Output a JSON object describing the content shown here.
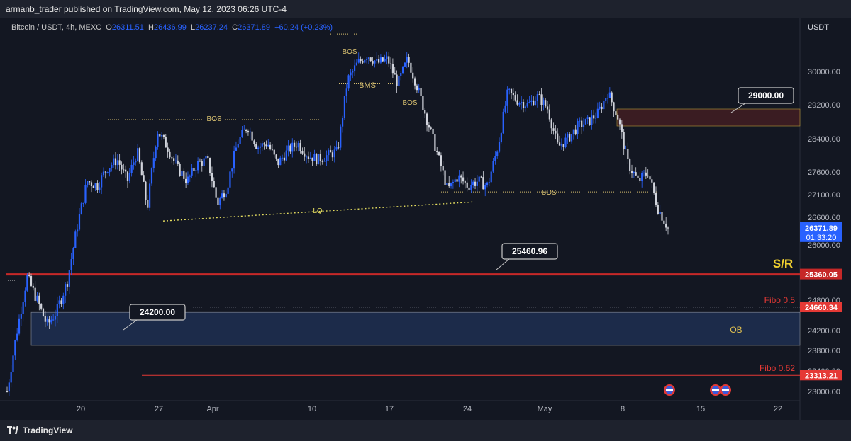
{
  "header": {
    "published": "armanb_trader published on TradingView.com, May 12, 2023 06:26 UTC-4"
  },
  "footer": {
    "brand": "TradingView"
  },
  "legend": {
    "symbol": "Bitcoin / USDT, 4h, MEXC",
    "o_label": "O",
    "o": "26311.51",
    "h_label": "H",
    "h": "26436.99",
    "l_label": "L",
    "l": "26237.24",
    "c_label": "C",
    "c": "26371.89",
    "change": "+60.24 (+0.23%)"
  },
  "currency": "USDT",
  "colors": {
    "up": "#2962ff",
    "down": "#d1d4dc",
    "sr": "#c62828",
    "fibo": "#e53935",
    "ob": "#1c2b4a",
    "supply": "#3a1c22",
    "label_gold": "#e0c050"
  },
  "chart_data": {
    "type": "candlestick",
    "ylim": [
      23000,
      31000
    ],
    "x_ticks": [
      "20",
      "27",
      "Apr",
      "10",
      "17",
      "24",
      "May",
      "8",
      "15",
      "22"
    ],
    "y_ticks": [
      "30000.00",
      "29200.00",
      "28400.00",
      "27600.00",
      "27100.00",
      "26600.00",
      "26000.00",
      "24800.00",
      "24200.00",
      "23800.00",
      "23400.00",
      "23000.00"
    ],
    "price_path": [
      [
        0,
        23000
      ],
      [
        1,
        24200
      ],
      [
        2,
        25300
      ],
      [
        3,
        24800
      ],
      [
        4,
        24300
      ],
      [
        5,
        24600
      ],
      [
        6,
        25200
      ],
      [
        7,
        26400
      ],
      [
        8,
        27400
      ],
      [
        9,
        27300
      ],
      [
        10,
        27700
      ],
      [
        11,
        27900
      ],
      [
        12,
        27400
      ],
      [
        13,
        28100
      ],
      [
        14,
        26800
      ],
      [
        15,
        28600
      ],
      [
        16,
        28200
      ],
      [
        17,
        27700
      ],
      [
        18,
        27400
      ],
      [
        19,
        27800
      ],
      [
        20,
        27900
      ],
      [
        21,
        26900
      ],
      [
        22,
        27300
      ],
      [
        23,
        28300
      ],
      [
        24,
        28700
      ],
      [
        25,
        28200
      ],
      [
        26,
        28300
      ],
      [
        27,
        27800
      ],
      [
        28,
        28100
      ],
      [
        29,
        28300
      ],
      [
        30,
        28000
      ],
      [
        31,
        27900
      ],
      [
        32,
        28000
      ],
      [
        33,
        28100
      ],
      [
        34,
        29800
      ],
      [
        35,
        30200
      ],
      [
        36,
        30400
      ],
      [
        37,
        30200
      ],
      [
        38,
        30300
      ],
      [
        39,
        29700
      ],
      [
        40,
        30300
      ],
      [
        41,
        29600
      ],
      [
        42,
        28800
      ],
      [
        43,
        28000
      ],
      [
        44,
        27200
      ],
      [
        45,
        27500
      ],
      [
        46,
        27300
      ],
      [
        47,
        27400
      ],
      [
        48,
        27300
      ],
      [
        49,
        28200
      ],
      [
        50,
        29500
      ],
      [
        51,
        29300
      ],
      [
        52,
        29200
      ],
      [
        53,
        29400
      ],
      [
        54,
        29100
      ],
      [
        55,
        28200
      ],
      [
        56,
        28400
      ],
      [
        57,
        28700
      ],
      [
        58,
        28800
      ],
      [
        59,
        29000
      ],
      [
        60,
        29500
      ],
      [
        61,
        28900
      ],
      [
        62,
        27800
      ],
      [
        63,
        27400
      ],
      [
        64,
        27600
      ],
      [
        65,
        26800
      ],
      [
        66,
        26372
      ]
    ],
    "price_axis_labels": [
      {
        "price": 26371.89,
        "text": "26371.89",
        "sub": "01:33:20",
        "color": "#2962ff"
      },
      {
        "price": 25360.05,
        "text": "25360.05",
        "color": "#c62828"
      },
      {
        "price": 24660.34,
        "text": "24660.34",
        "color": "#e53935"
      },
      {
        "price": 23313.21,
        "text": "23313.21",
        "color": "#e53935"
      }
    ],
    "annotations": [
      {
        "text": "29000.00",
        "kind": "callout"
      },
      {
        "text": "25460.96",
        "kind": "callout"
      },
      {
        "text": "24200.00",
        "kind": "callout"
      },
      {
        "text": "S/R",
        "kind": "label"
      },
      {
        "text": "Fibo 0.5",
        "kind": "label"
      },
      {
        "text": "Fibo 0.62",
        "kind": "label"
      },
      {
        "text": "OB",
        "kind": "label"
      },
      {
        "text": "BOS",
        "kind": "label"
      },
      {
        "text": "BOS",
        "kind": "label"
      },
      {
        "text": "BMS",
        "kind": "label"
      },
      {
        "text": "BOS",
        "kind": "label"
      },
      {
        "text": "BOS",
        "kind": "label"
      },
      {
        "text": "LQ",
        "kind": "label"
      }
    ]
  }
}
